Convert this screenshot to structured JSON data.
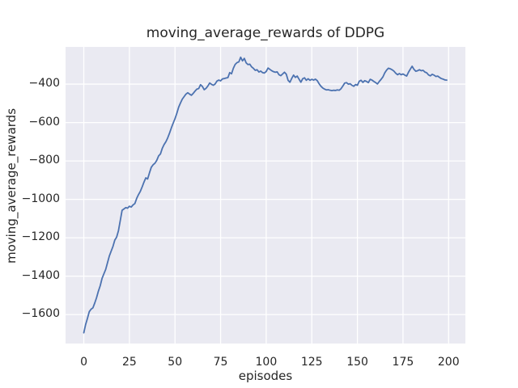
{
  "chart_data": {
    "type": "line",
    "title": "moving_average_rewards of DDPG",
    "xlabel": "episodes",
    "ylabel": "moving_average_rewards",
    "legend": false,
    "grid": true,
    "x_ticks": [
      0,
      25,
      50,
      75,
      100,
      125,
      150,
      175,
      200
    ],
    "y_ticks": [
      -400,
      -600,
      -800,
      -1000,
      -1200,
      -1400,
      -1600
    ],
    "xlim": [
      -10,
      209.2
    ],
    "ylim": [
      -1751,
      -206
    ],
    "colors": {
      "figure_background": "#ffffff",
      "axes_background": "#EAEAF2",
      "gridline": "#ffffff",
      "line": "#4C72B0",
      "text": "#262626"
    },
    "series": [
      {
        "name": "moving_average_rewards",
        "color": "#4C72B0",
        "x": [
          0,
          1,
          2,
          3,
          4,
          5,
          6,
          7,
          8,
          9,
          10,
          11,
          12,
          13,
          14,
          15,
          16,
          17,
          18,
          19,
          20,
          21,
          22,
          23,
          24,
          25,
          26,
          27,
          28,
          29,
          30,
          31,
          32,
          33,
          34,
          35,
          36,
          37,
          38,
          39,
          40,
          41,
          42,
          43,
          44,
          45,
          46,
          47,
          48,
          49,
          50,
          51,
          52,
          53,
          54,
          55,
          56,
          57,
          58,
          59,
          60,
          61,
          62,
          63,
          64,
          65,
          66,
          67,
          68,
          69,
          70,
          71,
          72,
          73,
          74,
          75,
          76,
          77,
          78,
          79,
          80,
          81,
          82,
          83,
          84,
          85,
          86,
          87,
          88,
          89,
          90,
          91,
          92,
          93,
          94,
          95,
          96,
          97,
          98,
          99,
          100,
          101,
          102,
          103,
          104,
          105,
          106,
          107,
          108,
          109,
          110,
          111,
          112,
          113,
          114,
          115,
          116,
          117,
          118,
          119,
          120,
          121,
          122,
          123,
          124,
          125,
          126,
          127,
          128,
          129,
          130,
          131,
          132,
          133,
          134,
          135,
          136,
          137,
          138,
          139,
          140,
          141,
          142,
          143,
          144,
          145,
          146,
          147,
          148,
          149,
          150,
          151,
          152,
          153,
          154,
          155,
          156,
          157,
          158,
          159,
          160,
          161,
          162,
          163,
          164,
          165,
          166,
          167,
          168,
          169,
          170,
          171,
          172,
          173,
          174,
          175,
          176,
          177,
          178,
          179,
          180,
          181,
          182,
          183,
          184,
          185,
          186,
          187,
          188,
          189,
          190,
          191,
          192,
          193,
          194,
          195,
          196,
          197,
          198,
          199
        ],
        "y": [
          -1695,
          -1652,
          -1620,
          -1585,
          -1572,
          -1565,
          -1540,
          -1512,
          -1478,
          -1450,
          -1412,
          -1388,
          -1365,
          -1330,
          -1295,
          -1270,
          -1245,
          -1212,
          -1197,
          -1163,
          -1110,
          -1057,
          -1050,
          -1043,
          -1046,
          -1036,
          -1040,
          -1029,
          -1022,
          -995,
          -975,
          -958,
          -935,
          -910,
          -888,
          -894,
          -862,
          -833,
          -820,
          -812,
          -797,
          -774,
          -764,
          -735,
          -715,
          -700,
          -680,
          -655,
          -628,
          -603,
          -580,
          -552,
          -520,
          -498,
          -478,
          -465,
          -452,
          -445,
          -452,
          -458,
          -448,
          -436,
          -426,
          -423,
          -403,
          -412,
          -429,
          -422,
          -410,
          -394,
          -401,
          -406,
          -399,
          -384,
          -379,
          -383,
          -373,
          -371,
          -368,
          -366,
          -340,
          -346,
          -317,
          -297,
          -288,
          -284,
          -260,
          -279,
          -266,
          -289,
          -298,
          -296,
          -310,
          -318,
          -328,
          -325,
          -337,
          -332,
          -340,
          -342,
          -334,
          -316,
          -323,
          -330,
          -335,
          -338,
          -336,
          -351,
          -356,
          -347,
          -338,
          -348,
          -380,
          -390,
          -370,
          -353,
          -365,
          -358,
          -374,
          -390,
          -372,
          -367,
          -380,
          -372,
          -380,
          -375,
          -379,
          -374,
          -382,
          -398,
          -411,
          -420,
          -426,
          -430,
          -429,
          -432,
          -434,
          -432,
          -433,
          -430,
          -432,
          -424,
          -410,
          -395,
          -392,
          -400,
          -398,
          -406,
          -411,
          -402,
          -406,
          -385,
          -380,
          -391,
          -382,
          -386,
          -392,
          -375,
          -379,
          -386,
          -392,
          -399,
          -386,
          -375,
          -362,
          -341,
          -327,
          -317,
          -320,
          -325,
          -332,
          -343,
          -351,
          -345,
          -351,
          -347,
          -353,
          -358,
          -338,
          -322,
          -307,
          -323,
          -333,
          -330,
          -325,
          -330,
          -328,
          -337,
          -341,
          -352,
          -357,
          -349,
          -353,
          -360,
          -358,
          -365,
          -371,
          -374,
          -378,
          -379
        ]
      }
    ]
  }
}
